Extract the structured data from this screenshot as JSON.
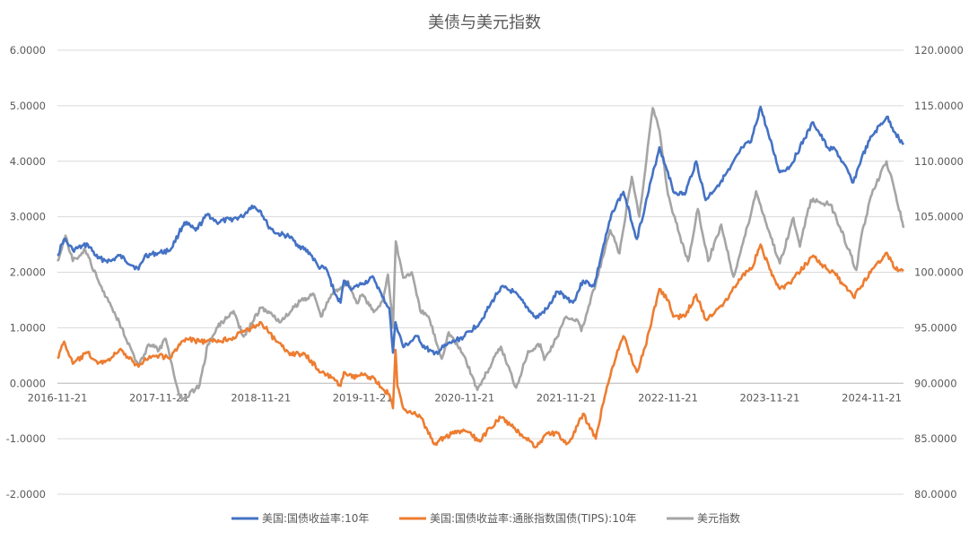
{
  "chart_data": {
    "type": "line",
    "title": "美债与美元指数",
    "x_tick_labels": [
      "2016-11-21",
      "2017-11-21",
      "2018-11-21",
      "2019-11-21",
      "2020-11-21",
      "2021-11-21",
      "2022-11-21",
      "2023-11-21",
      "2024-11-21"
    ],
    "y_left": {
      "ylim": [
        -2,
        6
      ],
      "tick_labels": [
        "-2.0000",
        "-1.0000",
        "0.0000",
        "1.0000",
        "2.0000",
        "3.0000",
        "4.0000",
        "5.0000",
        "6.0000"
      ]
    },
    "y_right": {
      "ylim": [
        80,
        120
      ],
      "tick_labels": [
        "80.0000",
        "85.0000",
        "90.0000",
        "95.0000",
        "100.0000",
        "105.0000",
        "110.0000",
        "115.0000",
        "120.0000"
      ]
    },
    "grid": true,
    "legend_position": "bottom",
    "series": [
      {
        "name": "美国:国债收益率:10年",
        "color": "#4472C4",
        "axis": "left",
        "points": [
          [
            "2016-11-21",
            2.3
          ],
          [
            "2016-12-15",
            2.6
          ],
          [
            "2017-01-15",
            2.4
          ],
          [
            "2017-03-10",
            2.5
          ],
          [
            "2017-04-15",
            2.25
          ],
          [
            "2017-06-01",
            2.2
          ],
          [
            "2017-07-01",
            2.3
          ],
          [
            "2017-09-08",
            2.05
          ],
          [
            "2017-10-01",
            2.3
          ],
          [
            "2017-11-21",
            2.35
          ],
          [
            "2017-12-31",
            2.4
          ],
          [
            "2018-01-31",
            2.7
          ],
          [
            "2018-02-20",
            2.9
          ],
          [
            "2018-04-01",
            2.75
          ],
          [
            "2018-05-15",
            3.05
          ],
          [
            "2018-06-15",
            2.9
          ],
          [
            "2018-08-01",
            2.95
          ],
          [
            "2018-09-15",
            3.0
          ],
          [
            "2018-10-20",
            3.2
          ],
          [
            "2018-11-21",
            3.1
          ],
          [
            "2018-12-15",
            2.85
          ],
          [
            "2019-01-15",
            2.7
          ],
          [
            "2019-03-01",
            2.65
          ],
          [
            "2019-04-01",
            2.5
          ],
          [
            "2019-05-15",
            2.35
          ],
          [
            "2019-06-15",
            2.1
          ],
          [
            "2019-07-15",
            2.05
          ],
          [
            "2019-08-15",
            1.6
          ],
          [
            "2019-09-03",
            1.45
          ],
          [
            "2019-09-15",
            1.85
          ],
          [
            "2019-10-15",
            1.7
          ],
          [
            "2019-11-21",
            1.8
          ],
          [
            "2019-12-31",
            1.9
          ],
          [
            "2020-01-31",
            1.55
          ],
          [
            "2020-02-25",
            1.35
          ],
          [
            "2020-03-09",
            0.55
          ],
          [
            "2020-03-18",
            1.1
          ],
          [
            "2020-04-15",
            0.65
          ],
          [
            "2020-06-08",
            0.85
          ],
          [
            "2020-06-20",
            0.7
          ],
          [
            "2020-08-04",
            0.52
          ],
          [
            "2020-09-15",
            0.68
          ],
          [
            "2020-11-21",
            0.85
          ],
          [
            "2021-01-15",
            1.1
          ],
          [
            "2021-02-20",
            1.4
          ],
          [
            "2021-03-31",
            1.73
          ],
          [
            "2021-05-15",
            1.65
          ],
          [
            "2021-07-15",
            1.3
          ],
          [
            "2021-08-04",
            1.17
          ],
          [
            "2021-09-15",
            1.35
          ],
          [
            "2021-10-20",
            1.65
          ],
          [
            "2021-11-21",
            1.55
          ],
          [
            "2021-12-15",
            1.45
          ],
          [
            "2022-01-20",
            1.85
          ],
          [
            "2022-03-01",
            1.75
          ],
          [
            "2022-03-31",
            2.4
          ],
          [
            "2022-05-06",
            3.1
          ],
          [
            "2022-06-14",
            3.45
          ],
          [
            "2022-08-01",
            2.6
          ],
          [
            "2022-08-31",
            3.2
          ],
          [
            "2022-10-21",
            4.25
          ],
          [
            "2022-11-21",
            3.8
          ],
          [
            "2022-12-10",
            3.45
          ],
          [
            "2023-01-20",
            3.4
          ],
          [
            "2023-03-02",
            4.0
          ],
          [
            "2023-04-05",
            3.3
          ],
          [
            "2023-05-31",
            3.65
          ],
          [
            "2023-06-30",
            3.85
          ],
          [
            "2023-08-15",
            4.25
          ],
          [
            "2023-09-15",
            4.35
          ],
          [
            "2023-10-19",
            4.98
          ],
          [
            "2023-11-21",
            4.4
          ],
          [
            "2023-12-27",
            3.8
          ],
          [
            "2024-02-01",
            3.9
          ],
          [
            "2024-04-25",
            4.7
          ],
          [
            "2024-06-15",
            4.25
          ],
          [
            "2024-07-15",
            4.2
          ],
          [
            "2024-09-16",
            3.62
          ],
          [
            "2024-10-15",
            4.05
          ],
          [
            "2024-11-21",
            4.45
          ],
          [
            "2025-01-14",
            4.8
          ],
          [
            "2025-02-15",
            4.5
          ],
          [
            "2025-03-15",
            4.3
          ]
        ]
      },
      {
        "name": "美国:国债收益率:通胀指数国债(TIPS):10年",
        "color": "#ED7D31",
        "axis": "left",
        "points": [
          [
            "2016-11-21",
            0.45
          ],
          [
            "2016-12-15",
            0.75
          ],
          [
            "2017-01-15",
            0.35
          ],
          [
            "2017-03-10",
            0.55
          ],
          [
            "2017-04-15",
            0.35
          ],
          [
            "2017-06-01",
            0.45
          ],
          [
            "2017-07-01",
            0.6
          ],
          [
            "2017-09-08",
            0.3
          ],
          [
            "2017-10-01",
            0.45
          ],
          [
            "2017-11-21",
            0.5
          ],
          [
            "2017-12-31",
            0.45
          ],
          [
            "2018-01-31",
            0.7
          ],
          [
            "2018-03-01",
            0.8
          ],
          [
            "2018-04-15",
            0.75
          ],
          [
            "2018-06-01",
            0.75
          ],
          [
            "2018-08-01",
            0.8
          ],
          [
            "2018-10-20",
            1.0
          ],
          [
            "2018-11-21",
            1.1
          ],
          [
            "2018-12-15",
            0.95
          ],
          [
            "2019-01-15",
            0.75
          ],
          [
            "2019-03-01",
            0.55
          ],
          [
            "2019-05-01",
            0.5
          ],
          [
            "2019-06-15",
            0.25
          ],
          [
            "2019-08-01",
            0.1
          ],
          [
            "2019-09-03",
            -0.05
          ],
          [
            "2019-09-15",
            0.2
          ],
          [
            "2019-10-15",
            0.1
          ],
          [
            "2019-11-21",
            0.15
          ],
          [
            "2019-12-31",
            0.1
          ],
          [
            "2020-01-31",
            -0.1
          ],
          [
            "2020-02-25",
            -0.2
          ],
          [
            "2020-03-09",
            -0.45
          ],
          [
            "2020-03-18",
            0.6
          ],
          [
            "2020-03-25",
            -0.05
          ],
          [
            "2020-04-15",
            -0.45
          ],
          [
            "2020-06-15",
            -0.6
          ],
          [
            "2020-08-04",
            -1.1
          ],
          [
            "2020-09-15",
            -0.95
          ],
          [
            "2020-11-21",
            -0.85
          ],
          [
            "2021-01-15",
            -1.05
          ],
          [
            "2021-02-20",
            -0.8
          ],
          [
            "2021-03-31",
            -0.62
          ],
          [
            "2021-05-15",
            -0.8
          ],
          [
            "2021-07-15",
            -1.05
          ],
          [
            "2021-08-04",
            -1.15
          ],
          [
            "2021-09-15",
            -0.9
          ],
          [
            "2021-10-20",
            -0.9
          ],
          [
            "2021-11-21",
            -1.1
          ],
          [
            "2021-12-15",
            -0.95
          ],
          [
            "2022-01-20",
            -0.55
          ],
          [
            "2022-03-07",
            -1.0
          ],
          [
            "2022-03-31",
            -0.4
          ],
          [
            "2022-05-06",
            0.3
          ],
          [
            "2022-06-14",
            0.85
          ],
          [
            "2022-08-01",
            0.2
          ],
          [
            "2022-08-31",
            0.65
          ],
          [
            "2022-10-21",
            1.7
          ],
          [
            "2022-11-21",
            1.5
          ],
          [
            "2022-12-10",
            1.2
          ],
          [
            "2023-01-20",
            1.2
          ],
          [
            "2023-03-02",
            1.6
          ],
          [
            "2023-04-05",
            1.15
          ],
          [
            "2023-05-31",
            1.4
          ],
          [
            "2023-06-30",
            1.6
          ],
          [
            "2023-08-15",
            1.95
          ],
          [
            "2023-09-15",
            2.05
          ],
          [
            "2023-10-19",
            2.5
          ],
          [
            "2023-11-21",
            2.05
          ],
          [
            "2023-12-27",
            1.7
          ],
          [
            "2024-02-01",
            1.8
          ],
          [
            "2024-04-25",
            2.3
          ],
          [
            "2024-06-15",
            2.05
          ],
          [
            "2024-07-15",
            1.95
          ],
          [
            "2024-09-16",
            1.55
          ],
          [
            "2024-10-15",
            1.75
          ],
          [
            "2024-11-21",
            2.05
          ],
          [
            "2025-01-14",
            2.35
          ],
          [
            "2025-02-15",
            2.05
          ],
          [
            "2025-03-15",
            2.05
          ]
        ]
      },
      {
        "name": "美元指数",
        "color": "#A5A5A5",
        "axis": "right",
        "points": [
          [
            "2016-11-21",
            101.0
          ],
          [
            "2016-12-20",
            103.3
          ],
          [
            "2017-01-15",
            101.0
          ],
          [
            "2017-03-01",
            102.0
          ],
          [
            "2017-04-20",
            99.0
          ],
          [
            "2017-06-01",
            97.0
          ],
          [
            "2017-07-01",
            95.5
          ],
          [
            "2017-09-08",
            91.5
          ],
          [
            "2017-10-15",
            93.5
          ],
          [
            "2017-11-21",
            93.0
          ],
          [
            "2017-12-15",
            94.0
          ],
          [
            "2018-01-31",
            89.0
          ],
          [
            "2018-02-15",
            88.6
          ],
          [
            "2018-04-15",
            89.8
          ],
          [
            "2018-05-15",
            93.5
          ],
          [
            "2018-06-15",
            95.0
          ],
          [
            "2018-08-15",
            96.5
          ],
          [
            "2018-09-20",
            94.2
          ],
          [
            "2018-11-21",
            96.8
          ],
          [
            "2018-12-31",
            96.2
          ],
          [
            "2019-01-31",
            95.5
          ],
          [
            "2019-04-15",
            97.5
          ],
          [
            "2019-05-31",
            98.0
          ],
          [
            "2019-06-25",
            96.0
          ],
          [
            "2019-08-01",
            98.0
          ],
          [
            "2019-09-30",
            99.2
          ],
          [
            "2019-10-31",
            97.2
          ],
          [
            "2019-11-21",
            98.0
          ],
          [
            "2019-12-31",
            96.4
          ],
          [
            "2020-01-31",
            97.4
          ],
          [
            "2020-02-20",
            99.8
          ],
          [
            "2020-03-09",
            95.0
          ],
          [
            "2020-03-19",
            102.8
          ],
          [
            "2020-04-15",
            99.5
          ],
          [
            "2020-05-15",
            100.0
          ],
          [
            "2020-06-15",
            96.5
          ],
          [
            "2020-07-15",
            96.0
          ],
          [
            "2020-08-31",
            92.2
          ],
          [
            "2020-09-25",
            94.6
          ],
          [
            "2020-11-21",
            92.4
          ],
          [
            "2021-01-06",
            89.4
          ],
          [
            "2021-03-31",
            93.3
          ],
          [
            "2021-05-25",
            89.6
          ],
          [
            "2021-07-07",
            92.9
          ],
          [
            "2021-08-20",
            93.5
          ],
          [
            "2021-09-03",
            92.1
          ],
          [
            "2021-10-15",
            94.0
          ],
          [
            "2021-11-21",
            96.0
          ],
          [
            "2021-12-31",
            95.7
          ],
          [
            "2022-01-14",
            94.7
          ],
          [
            "2022-03-07",
            99.0
          ],
          [
            "2022-04-28",
            103.8
          ],
          [
            "2022-05-31",
            101.7
          ],
          [
            "2022-07-14",
            108.6
          ],
          [
            "2022-08-10",
            105.0
          ],
          [
            "2022-09-27",
            114.8
          ],
          [
            "2022-10-21",
            112.8
          ],
          [
            "2022-11-21",
            107.0
          ],
          [
            "2022-12-31",
            103.5
          ],
          [
            "2023-02-01",
            101.0
          ],
          [
            "2023-03-08",
            105.7
          ],
          [
            "2023-04-14",
            101.0
          ],
          [
            "2023-05-31",
            104.3
          ],
          [
            "2023-07-14",
            99.6
          ],
          [
            "2023-09-15",
            105.3
          ],
          [
            "2023-10-03",
            107.3
          ],
          [
            "2023-11-21",
            103.5
          ],
          [
            "2023-12-27",
            100.8
          ],
          [
            "2024-02-14",
            104.9
          ],
          [
            "2024-03-08",
            102.3
          ],
          [
            "2024-04-16",
            106.5
          ],
          [
            "2024-06-26",
            106.1
          ],
          [
            "2024-07-31",
            104.0
          ],
          [
            "2024-09-27",
            100.2
          ],
          [
            "2024-10-15",
            103.3
          ],
          [
            "2024-11-21",
            107.0
          ],
          [
            "2025-01-13",
            110.0
          ],
          [
            "2025-02-15",
            107.0
          ],
          [
            "2025-03-15",
            104.0
          ]
        ]
      }
    ]
  }
}
